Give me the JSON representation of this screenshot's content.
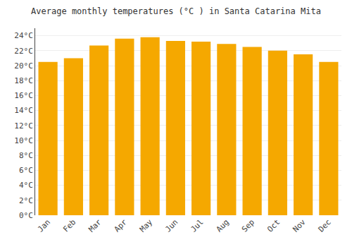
{
  "chart_data": {
    "type": "bar",
    "title": "Average monthly temperatures (°C ) in Santa Catarina Mita",
    "categories": [
      "Jan",
      "Feb",
      "Mar",
      "Apr",
      "May",
      "Jun",
      "Jul",
      "Aug",
      "Sep",
      "Oct",
      "Nov",
      "Dec"
    ],
    "values": [
      20.5,
      21.0,
      22.7,
      23.6,
      23.8,
      23.3,
      23.2,
      22.9,
      22.5,
      22.0,
      21.5,
      20.5
    ],
    "color": "#F5A800",
    "ylim": [
      0,
      25
    ],
    "yticks": [
      {
        "value": 0,
        "label": "0°C"
      },
      {
        "value": 2,
        "label": "2°C"
      },
      {
        "value": 4,
        "label": "4°C"
      },
      {
        "value": 6,
        "label": "6°C"
      },
      {
        "value": 8,
        "label": "8°C"
      },
      {
        "value": 10,
        "label": "10°C"
      },
      {
        "value": 12,
        "label": "12°C"
      },
      {
        "value": 14,
        "label": "14°C"
      },
      {
        "value": 16,
        "label": "16°C"
      },
      {
        "value": 18,
        "label": "18°C"
      },
      {
        "value": 20,
        "label": "20°C"
      },
      {
        "value": 22,
        "label": "22°C"
      },
      {
        "value": 24,
        "label": "24°C"
      }
    ],
    "grid": true
  }
}
